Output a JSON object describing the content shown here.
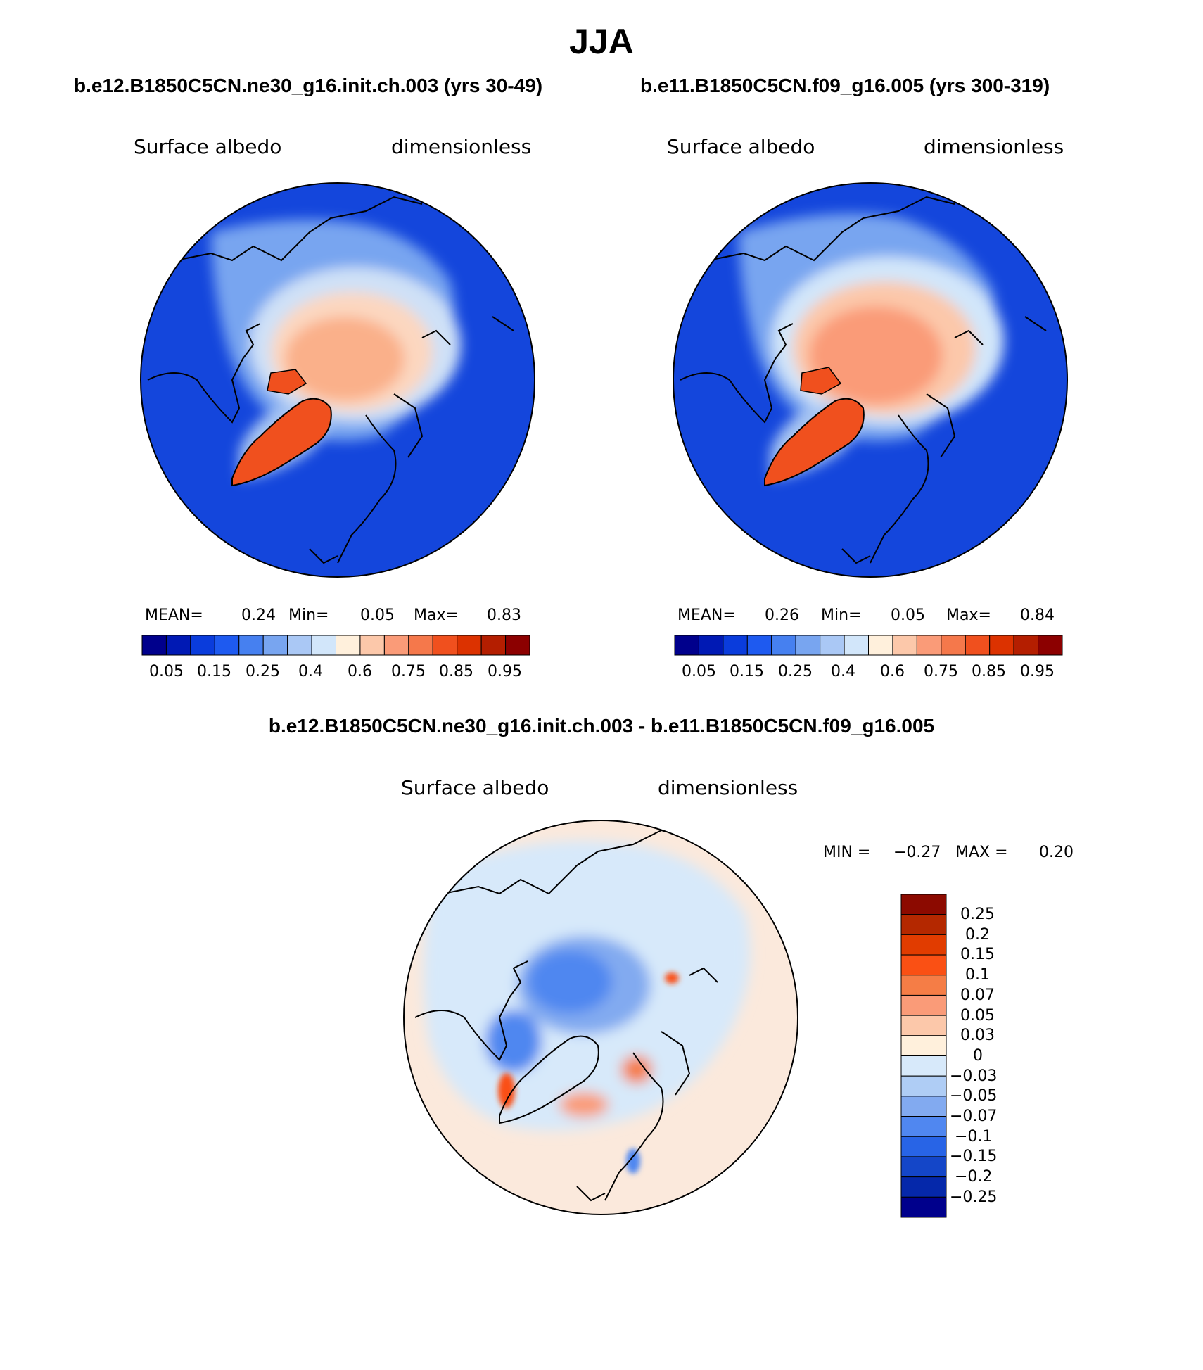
{
  "title": "JJA",
  "panels": [
    {
      "run": "b.e12.B1850C5CN.ne30_g16.init.ch.003 (yrs 30-49)",
      "variable": "Surface albedo",
      "units": "dimensionless",
      "mean_label": "MEAN=",
      "mean": "0.24",
      "min_label": "Min=",
      "min": "0.05",
      "max_label": "Max=",
      "max": "0.83"
    },
    {
      "run": "b.e11.B1850C5CN.f09_g16.005 (yrs 300-319)",
      "variable": "Surface albedo",
      "units": "dimensionless",
      "mean_label": "MEAN=",
      "mean": "0.26",
      "min_label": "Min=",
      "min": "0.05",
      "max_label": "Max=",
      "max": "0.84"
    }
  ],
  "colorbar_ticks": [
    "0.05",
    "0.15",
    "0.25",
    "0.4",
    "0.6",
    "0.75",
    "0.85",
    "0.95"
  ],
  "colorbar_colors": [
    "#00008c",
    "#0019b4",
    "#0a3cdc",
    "#1e5af0",
    "#4680f0",
    "#78a5f0",
    "#aac8f5",
    "#d2e6fa",
    "#fff0dc",
    "#fcc8aa",
    "#fa9b78",
    "#f5784b",
    "#f0501e",
    "#dc3200",
    "#b41e00",
    "#8c0000"
  ],
  "difference": {
    "title": "b.e12.B1850C5CN.ne30_g16.init.ch.003 - b.e11.B1850C5CN.f09_g16.005",
    "variable": "Surface albedo",
    "units": "dimensionless",
    "min_label": "MIN =",
    "min": "−0.27",
    "max_label": "MAX =",
    "max": "0.20",
    "levels": [
      "0.25",
      "0.2",
      "0.15",
      "0.1",
      "0.07",
      "0.05",
      "0.03",
      "0",
      "−0.03",
      "−0.05",
      "−0.07",
      "−0.1",
      "−0.15",
      "−0.2",
      "−0.25"
    ],
    "colors": [
      "#8c0a00",
      "#b42800",
      "#e13c00",
      "#fa5014",
      "#f57d46",
      "#fa9b78",
      "#fcc8aa",
      "#fff0dc",
      "#d7e9fa",
      "#afcdf5",
      "#82aaf0",
      "#5087f0",
      "#2864e6",
      "#1446c8",
      "#0528aa",
      "#00008c"
    ]
  },
  "chart_data": [
    {
      "type": "heatmap",
      "title": "b.e12.B1850C5CN.ne30_g16.init.ch.003 (yrs 30-49)",
      "variable": "Surface albedo",
      "units": "dimensionless",
      "projection": "north polar stereographic",
      "mean": 0.24,
      "min": 0.05,
      "max": 0.83,
      "colorbar_levels": [
        0.05,
        0.1,
        0.15,
        0.2,
        0.25,
        0.3,
        0.4,
        0.5,
        0.6,
        0.65,
        0.7,
        0.75,
        0.8,
        0.85,
        0.9,
        0.95
      ]
    },
    {
      "type": "heatmap",
      "title": "b.e11.B1850C5CN.f09_g16.005 (yrs 300-319)",
      "variable": "Surface albedo",
      "units": "dimensionless",
      "projection": "north polar stereographic",
      "mean": 0.26,
      "min": 0.05,
      "max": 0.84,
      "colorbar_levels": [
        0.05,
        0.1,
        0.15,
        0.2,
        0.25,
        0.3,
        0.4,
        0.5,
        0.6,
        0.65,
        0.7,
        0.75,
        0.8,
        0.85,
        0.9,
        0.95
      ]
    },
    {
      "type": "heatmap",
      "title": "b.e12.B1850C5CN.ne30_g16.init.ch.003 - b.e11.B1850C5CN.f09_g16.005",
      "variable": "Surface albedo",
      "units": "dimensionless",
      "projection": "north polar stereographic",
      "min": -0.27,
      "max": 0.2,
      "colorbar_levels": [
        -0.25,
        -0.2,
        -0.15,
        -0.1,
        -0.07,
        -0.05,
        -0.03,
        0,
        0.03,
        0.05,
        0.07,
        0.1,
        0.15,
        0.2,
        0.25
      ]
    }
  ]
}
